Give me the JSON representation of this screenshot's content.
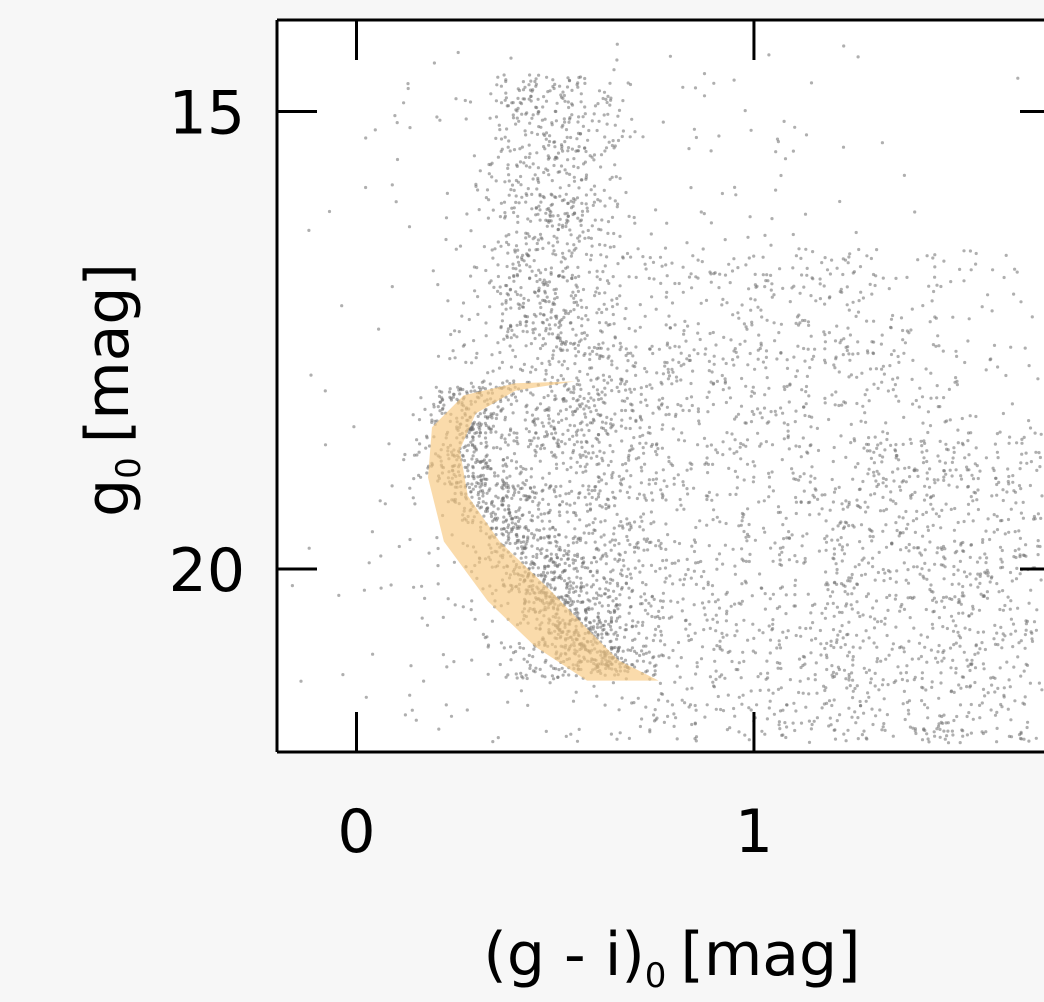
{
  "chart_data": {
    "type": "scatter",
    "title": "",
    "xlabel": "(g - i)",
    "xlabel_subscript": "0",
    "xlabel_unit": "[mag]",
    "ylabel": "g",
    "ylabel_subscript": "0",
    "ylabel_unit": "[mag]",
    "xlim": [
      -0.2,
      1.77
    ],
    "ylim": [
      22.0,
      14.0
    ],
    "y_inverted": true,
    "xticks": [
      0,
      1
    ],
    "xtick_labels": [
      "0",
      "1"
    ],
    "yticks": [
      15,
      20
    ],
    "ytick_labels": [
      "15",
      "20"
    ],
    "grid": false,
    "colors": {
      "stars": "#6e6e6e",
      "selection_fill": "#f7c77e",
      "selection_fill_opacity": 0.65,
      "axis": "#000000",
      "background": "#ffffff"
    },
    "selection_region": {
      "description_label": "",
      "polygon": [
        [
          0.55,
          17.95
        ],
        [
          0.4,
          18.05
        ],
        [
          0.3,
          18.3
        ],
        [
          0.26,
          18.7
        ],
        [
          0.28,
          19.2
        ],
        [
          0.36,
          19.7
        ],
        [
          0.48,
          20.2
        ],
        [
          0.58,
          20.65
        ],
        [
          0.66,
          21.0
        ],
        [
          0.76,
          21.22
        ],
        [
          0.58,
          21.22
        ],
        [
          0.45,
          20.85
        ],
        [
          0.33,
          20.35
        ],
        [
          0.22,
          19.7
        ],
        [
          0.18,
          19.0
        ],
        [
          0.19,
          18.45
        ],
        [
          0.27,
          18.1
        ],
        [
          0.4,
          17.97
        ]
      ]
    },
    "star_groups": [
      {
        "name": "",
        "x_center": 0.48,
        "x_spread": 0.09,
        "y_range": [
          14.6,
          17.5
        ],
        "count": 700
      },
      {
        "name": "",
        "x_center": 0.34,
        "x_spread": 0.06,
        "y_range": [
          18.0,
          21.1
        ],
        "count": 900
      },
      {
        "name": "",
        "x_center": 0.55,
        "x_spread": 0.13,
        "y_range": [
          17.5,
          21.2
        ],
        "count": 1100
      },
      {
        "name": "",
        "x_center": 1.1,
        "x_spread": 0.3,
        "y_range": [
          16.5,
          21.9
        ],
        "count": 1500
      },
      {
        "name": "",
        "x_center": 1.55,
        "x_spread": 0.2,
        "y_range": [
          18.5,
          21.9
        ],
        "count": 700
      },
      {
        "name": "",
        "x_center": 0.6,
        "x_spread": 0.45,
        "y_range": [
          14.2,
          21.9
        ],
        "count": 400
      }
    ]
  }
}
